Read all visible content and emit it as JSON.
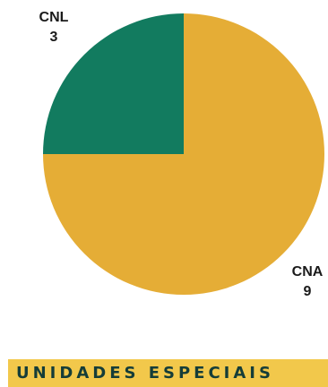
{
  "chart_data": {
    "type": "pie",
    "title": "",
    "slices": [
      {
        "label": "CNL",
        "value": 3,
        "color": "#127b5f"
      },
      {
        "label": "CNA",
        "value": 9,
        "color": "#e5ad36"
      }
    ],
    "start_angle_deg": 0,
    "direction": "counterclockwise",
    "legend": "none"
  },
  "banner": {
    "text": "UNIDADES ESPECIAIS",
    "background": "#f2c84b",
    "text_color": "#153d38"
  }
}
